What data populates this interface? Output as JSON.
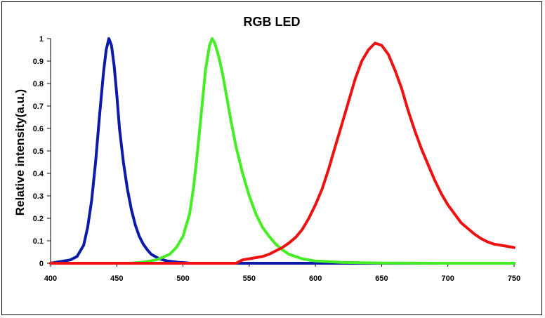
{
  "chart_data": {
    "type": "line",
    "title": "RGB LED",
    "xlabel": "",
    "ylabel": "Relative intensity(a.u.)",
    "xlim": [
      400,
      750
    ],
    "ylim": [
      0,
      1
    ],
    "xticks": [
      400,
      450,
      500,
      550,
      600,
      650,
      700,
      750
    ],
    "yticks": [
      0,
      0.1,
      0.2,
      0.3,
      0.4,
      0.5,
      0.6,
      0.7,
      0.8,
      0.9,
      1
    ],
    "ytick_labels": [
      "0",
      "0.1",
      "0.2",
      "0.3",
      "0.4",
      "0.5",
      "0.6",
      "0.7",
      "0.8",
      "0.9",
      "1"
    ],
    "grid": false,
    "legend": "none",
    "series": [
      {
        "color": "#0b1aa8",
        "x": [
          400,
          405,
          410,
          415,
          420,
          425,
          428,
          431,
          434,
          437,
          440,
          442,
          444,
          446,
          448,
          450,
          452,
          455,
          458,
          461,
          464,
          467,
          470,
          473,
          476,
          479,
          482,
          485,
          488,
          491,
          494,
          497,
          500,
          505,
          510,
          520,
          550,
          600,
          650,
          700,
          750
        ],
        "y": [
          0.0,
          0.005,
          0.01,
          0.015,
          0.03,
          0.08,
          0.16,
          0.28,
          0.45,
          0.66,
          0.85,
          0.95,
          1.0,
          0.97,
          0.88,
          0.75,
          0.6,
          0.45,
          0.33,
          0.24,
          0.17,
          0.12,
          0.085,
          0.06,
          0.04,
          0.03,
          0.02,
          0.015,
          0.01,
          0.008,
          0.006,
          0.004,
          0.003,
          0.0,
          0.0,
          0.0,
          0.0,
          0.0,
          0.0,
          0.0,
          0.0
        ]
      },
      {
        "color": "#44ee22",
        "x": [
          400,
          460,
          470,
          480,
          490,
          495,
          500,
          505,
          508,
          511,
          514,
          517,
          520,
          522,
          524,
          527,
          530,
          533,
          536,
          540,
          545,
          550,
          555,
          560,
          565,
          570,
          575,
          580,
          590,
          600,
          620,
          650,
          700,
          750
        ],
        "y": [
          0.0,
          0.0,
          0.005,
          0.015,
          0.04,
          0.07,
          0.12,
          0.22,
          0.34,
          0.5,
          0.68,
          0.86,
          0.97,
          1.0,
          0.98,
          0.92,
          0.84,
          0.74,
          0.64,
          0.52,
          0.4,
          0.3,
          0.22,
          0.16,
          0.12,
          0.085,
          0.06,
          0.04,
          0.02,
          0.01,
          0.004,
          0.001,
          0.0,
          0.0
        ]
      },
      {
        "color": "#ee1111",
        "x": [
          400,
          440,
          540,
          545,
          550,
          555,
          560,
          565,
          570,
          575,
          580,
          585,
          590,
          595,
          600,
          605,
          610,
          615,
          620,
          625,
          630,
          635,
          640,
          645,
          650,
          655,
          660,
          665,
          670,
          675,
          680,
          685,
          690,
          695,
          700,
          705,
          710,
          715,
          720,
          725,
          730,
          735,
          740,
          745,
          750
        ],
        "y": [
          0.0,
          0.0,
          0.0,
          0.015,
          0.02,
          0.025,
          0.03,
          0.04,
          0.055,
          0.07,
          0.09,
          0.115,
          0.15,
          0.2,
          0.26,
          0.33,
          0.42,
          0.52,
          0.62,
          0.72,
          0.82,
          0.9,
          0.95,
          0.98,
          0.97,
          0.93,
          0.86,
          0.78,
          0.68,
          0.59,
          0.51,
          0.44,
          0.37,
          0.31,
          0.26,
          0.22,
          0.18,
          0.155,
          0.13,
          0.11,
          0.095,
          0.085,
          0.08,
          0.075,
          0.07
        ]
      }
    ]
  }
}
